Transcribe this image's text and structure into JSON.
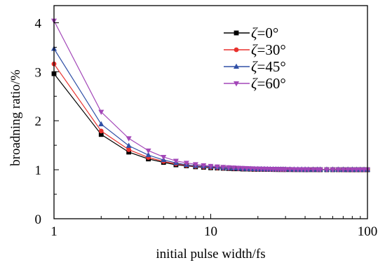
{
  "chart_data": {
    "type": "line",
    "title": "",
    "xlabel": "initial pulse width/fs",
    "ylabel": "broadning ratio/%",
    "xscale": "log",
    "xlim": [
      1,
      100
    ],
    "ylim": [
      0,
      4.35
    ],
    "xticks": [
      1,
      10,
      100
    ],
    "xtick_labels": [
      "1",
      "10",
      "100"
    ],
    "yticks": [
      0,
      1,
      2,
      3,
      4
    ],
    "ytick_labels": [
      "0",
      "1",
      "2",
      "3",
      "4"
    ],
    "grid": false,
    "legend_position": "top-right",
    "x": [
      1,
      2,
      3,
      4,
      5,
      6,
      7,
      8,
      9,
      10,
      11,
      12,
      13,
      14,
      15,
      16,
      17,
      18,
      19,
      20,
      21,
      22,
      23,
      24,
      25,
      26,
      27,
      28,
      29,
      30,
      32,
      34,
      36,
      38,
      40,
      42,
      45,
      48,
      50,
      55,
      60,
      65,
      70,
      75,
      80,
      85,
      90,
      95,
      100
    ],
    "series": [
      {
        "name": "ζ=0°",
        "symbol": "zeta",
        "angle": "=0°",
        "color": "#000000",
        "marker": "square",
        "values": [
          2.96,
          1.72,
          1.36,
          1.22,
          1.15,
          1.1,
          1.08,
          1.06,
          1.05,
          1.04,
          1.035,
          1.03,
          1.025,
          1.02,
          1.02,
          1.015,
          1.015,
          1.012,
          1.01,
          1.01,
          1.01,
          1.008,
          1.008,
          1.007,
          1.006,
          1.006,
          1.005,
          1.005,
          1.005,
          1.004,
          1.004,
          1.003,
          1.003,
          1.003,
          1.002,
          1.002,
          1.002,
          1.002,
          1.001,
          1.001,
          1.001,
          1.001,
          1.001,
          1.0,
          1.0,
          1.0,
          1.0,
          1.0,
          1.0
        ]
      },
      {
        "name": "ζ=30°",
        "symbol": "zeta",
        "angle": "=30°",
        "color": "#e8312d",
        "marker": "circle",
        "values": [
          3.16,
          1.79,
          1.41,
          1.25,
          1.17,
          1.12,
          1.09,
          1.07,
          1.06,
          1.05,
          1.04,
          1.035,
          1.03,
          1.025,
          1.022,
          1.02,
          1.018,
          1.015,
          1.013,
          1.012,
          1.011,
          1.01,
          1.009,
          1.008,
          1.008,
          1.007,
          1.007,
          1.006,
          1.006,
          1.005,
          1.005,
          1.004,
          1.004,
          1.004,
          1.003,
          1.003,
          1.003,
          1.002,
          1.002,
          1.002,
          1.002,
          1.001,
          1.001,
          1.001,
          1.001,
          1.001,
          1.001,
          1.001,
          1.001
        ]
      },
      {
        "name": "ζ=45°",
        "symbol": "zeta",
        "angle": "=45°",
        "color": "#3050a6",
        "marker": "triangle-up",
        "values": [
          3.47,
          1.93,
          1.49,
          1.3,
          1.2,
          1.14,
          1.1,
          1.08,
          1.07,
          1.06,
          1.05,
          1.04,
          1.035,
          1.03,
          1.026,
          1.023,
          1.02,
          1.018,
          1.016,
          1.015,
          1.014,
          1.013,
          1.012,
          1.011,
          1.01,
          1.01,
          1.009,
          1.009,
          1.008,
          1.008,
          1.007,
          1.007,
          1.006,
          1.006,
          1.006,
          1.005,
          1.005,
          1.005,
          1.005,
          1.004,
          1.004,
          1.004,
          1.004,
          1.004,
          1.004,
          1.003,
          1.003,
          1.003,
          1.003
        ]
      },
      {
        "name": "ζ=60°",
        "symbol": "zeta",
        "angle": "=60°",
        "color": "#a347b8",
        "marker": "triangle-down",
        "values": [
          4.04,
          2.18,
          1.64,
          1.39,
          1.26,
          1.18,
          1.14,
          1.11,
          1.09,
          1.075,
          1.065,
          1.055,
          1.048,
          1.042,
          1.037,
          1.033,
          1.03,
          1.027,
          1.024,
          1.022,
          1.02,
          1.018,
          1.017,
          1.016,
          1.015,
          1.014,
          1.013,
          1.012,
          1.011,
          1.01,
          1.01,
          1.009,
          1.008,
          1.008,
          1.007,
          1.007,
          1.006,
          1.006,
          1.006,
          1.005,
          1.005,
          1.005,
          1.004,
          1.004,
          1.004,
          1.004,
          1.004,
          1.004,
          1.004
        ]
      }
    ]
  }
}
